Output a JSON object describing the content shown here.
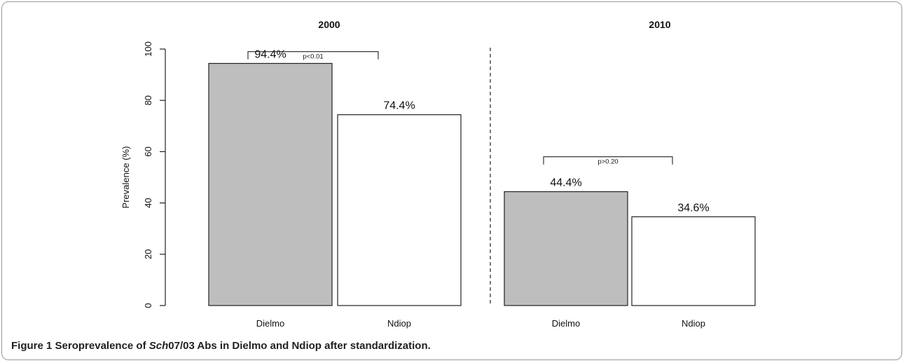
{
  "chart_data": {
    "type": "bar",
    "ylabel": "Prevalence (%)",
    "ylim": [
      0,
      100
    ],
    "yticks": [
      0,
      20,
      40,
      60,
      80,
      100
    ],
    "panels": [
      {
        "title": "2000",
        "categories": [
          "Dielmo",
          "Ndiop"
        ],
        "values": [
          94.4,
          74.4
        ],
        "value_labels": [
          "94.4%",
          "74.4%"
        ],
        "fills": [
          "#bebebe",
          "#ffffff"
        ],
        "comparison": {
          "label": "p<0.01",
          "level": 99
        }
      },
      {
        "title": "2010",
        "categories": [
          "Dielmo",
          "Ndiop"
        ],
        "values": [
          44.4,
          34.6
        ],
        "value_labels": [
          "44.4%",
          "34.6%"
        ],
        "fills": [
          "#bebebe",
          "#ffffff"
        ],
        "comparison": {
          "label": "p>0.20",
          "level": 58
        }
      }
    ]
  },
  "caption": {
    "label": "Figure 1",
    "before": "Seroprevalence of ",
    "italic": "Sch",
    "after": "07/03 Abs in Dielmo and Ndiop after standardization."
  }
}
